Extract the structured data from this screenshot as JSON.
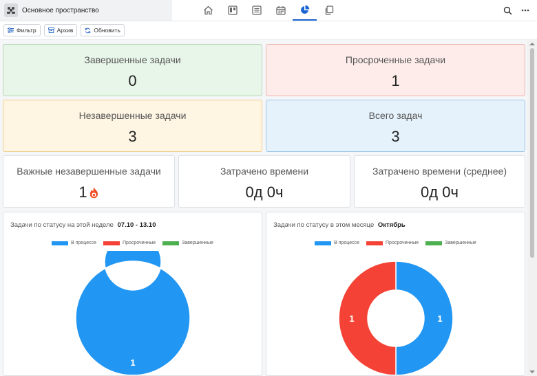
{
  "workspace": {
    "name": "Основное пространство"
  },
  "nav": [
    {
      "icon": "home-icon"
    },
    {
      "icon": "board-icon"
    },
    {
      "icon": "list-icon"
    },
    {
      "icon": "calendar-icon"
    },
    {
      "icon": "pie-chart-icon",
      "active": true
    },
    {
      "icon": "copy-icon"
    }
  ],
  "toolbar": {
    "filter_label": "Фильтр",
    "archive_label": "Архив",
    "refresh_label": "Обновить"
  },
  "stats": {
    "completed": {
      "title": "Завершенные задачи",
      "value": "0"
    },
    "overdue": {
      "title": "Просроченные задачи",
      "value": "1"
    },
    "incomplete": {
      "title": "Незавершенные задачи",
      "value": "3"
    },
    "total": {
      "title": "Всего задач",
      "value": "3"
    },
    "important": {
      "title": "Важные незавершенные задачи",
      "value": "1"
    },
    "time_spent": {
      "title": "Затрачено времени",
      "value": "0д 0ч"
    },
    "time_avg": {
      "title": "Затрачено времени (среднее)",
      "value": "0д 0ч"
    }
  },
  "colors": {
    "in_progress": "#2196f3",
    "overdue": "#f44336",
    "completed": "#4caf50"
  },
  "chart_data": [
    {
      "type": "pie",
      "title": "Задачи по статусу на этой неделе",
      "period": "07.10 - 13.10",
      "categories": [
        "В процессе",
        "Просроченные",
        "Завершенные"
      ],
      "values": [
        1,
        0,
        0
      ],
      "colors": [
        "#2196f3",
        "#f44336",
        "#4caf50"
      ],
      "legend": "top"
    },
    {
      "type": "pie",
      "title": "Задачи по статусу в этом месяце",
      "period": "Октябрь",
      "categories": [
        "В процессе",
        "Просроченные",
        "Завершенные"
      ],
      "values": [
        1,
        1,
        0
      ],
      "colors": [
        "#2196f3",
        "#f44336",
        "#4caf50"
      ],
      "legend": "top"
    }
  ]
}
